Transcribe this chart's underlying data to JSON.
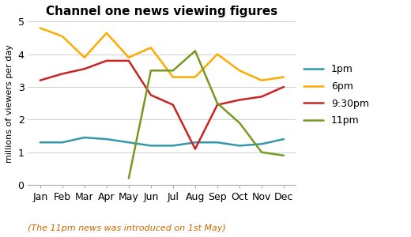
{
  "title": "Channel one news viewing figures",
  "ylabel": "millions of viewers per day",
  "footnote": "(The 11pm news was introduced on 1st May)",
  "months": [
    "Jan",
    "Feb",
    "Mar",
    "Apr",
    "May",
    "Jun",
    "Jul",
    "Aug",
    "Sep",
    "Oct",
    "Nov",
    "Dec"
  ],
  "series_order": [
    "1pm",
    "6pm",
    "9:30pm",
    "11pm"
  ],
  "series": {
    "1pm": {
      "color": "#3399AA",
      "values": [
        1.3,
        1.3,
        1.45,
        1.4,
        1.3,
        1.2,
        1.2,
        1.3,
        1.3,
        1.2,
        1.25,
        1.4
      ]
    },
    "6pm": {
      "color": "#FFAA00",
      "values": [
        4.8,
        4.55,
        3.9,
        4.65,
        3.9,
        4.2,
        3.3,
        3.3,
        4.0,
        3.5,
        3.2,
        3.3
      ]
    },
    "9:30pm": {
      "color": "#CC2222",
      "values": [
        3.2,
        3.4,
        3.55,
        3.8,
        3.8,
        2.75,
        2.45,
        1.1,
        2.45,
        2.6,
        2.7,
        3.0
      ]
    },
    "11pm": {
      "color": "#779922",
      "values": [
        null,
        null,
        null,
        null,
        0.2,
        3.5,
        3.5,
        4.1,
        2.5,
        1.9,
        1.0,
        0.9
      ]
    }
  },
  "ylim": [
    0,
    5
  ],
  "yticks": [
    0,
    1,
    2,
    3,
    4,
    5
  ],
  "background_color": "#ffffff",
  "grid_color": "#d0d0d0",
  "footnote_color": "#CC6600",
  "title_fontsize": 11,
  "axis_fontsize": 8,
  "tick_fontsize": 9,
  "legend_fontsize": 9,
  "line_width": 1.8
}
